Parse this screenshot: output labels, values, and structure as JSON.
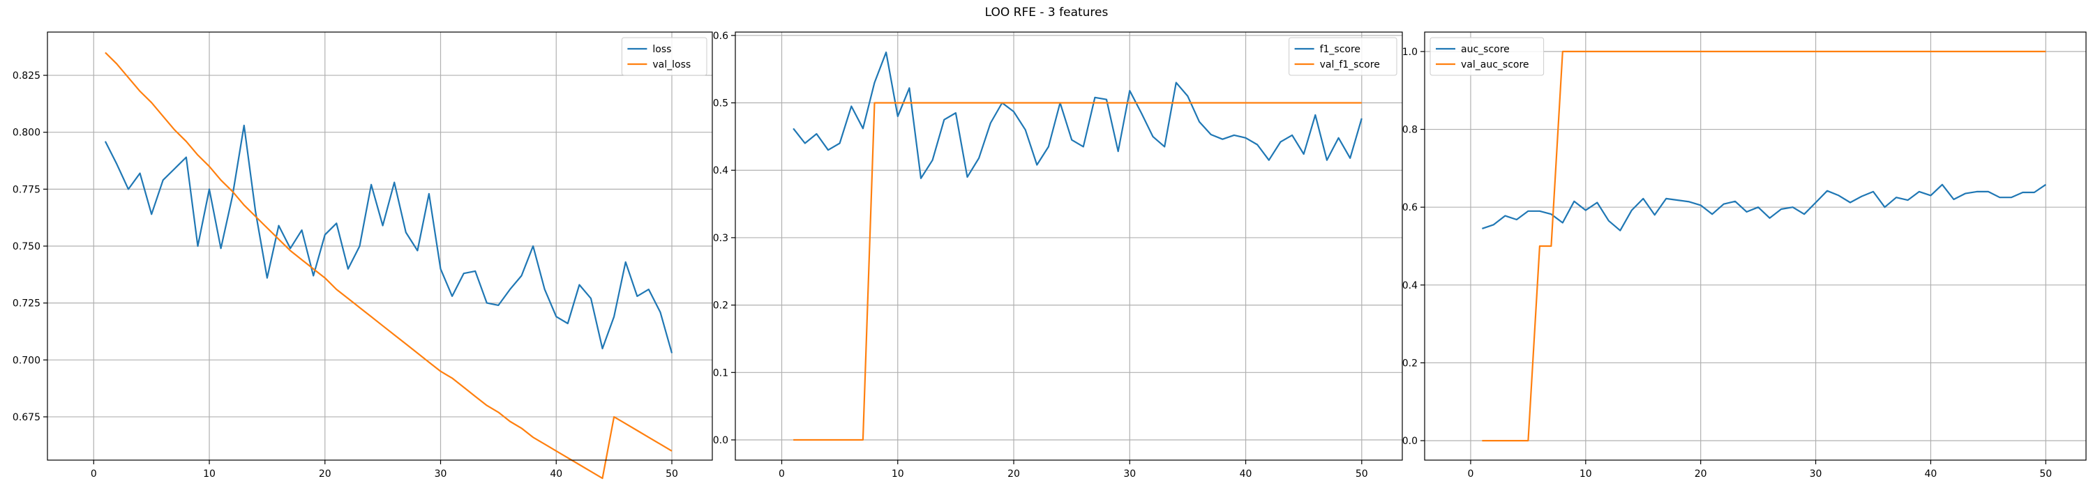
{
  "figure": {
    "title": "LOO RFE - 3 features"
  },
  "chart_data": [
    {
      "type": "line",
      "title": "",
      "xlabel": "",
      "ylabel": "",
      "xlim": [
        -4,
        53.5
      ],
      "ylim": [
        0.656,
        0.844
      ],
      "xticks": [
        0,
        10,
        20,
        30,
        40,
        50
      ],
      "yticks": [
        0.675,
        0.7,
        0.725,
        0.75,
        0.775,
        0.8,
        0.825
      ],
      "ytick_labels": [
        "0.675",
        "0.700",
        "0.725",
        "0.750",
        "0.775",
        "0.800",
        "0.825"
      ],
      "grid": true,
      "legend": "upper right",
      "x": [
        1,
        2,
        3,
        4,
        5,
        6,
        7,
        8,
        9,
        10,
        11,
        12,
        13,
        14,
        15,
        16,
        17,
        18,
        19,
        20,
        21,
        22,
        23,
        24,
        25,
        26,
        27,
        28,
        29,
        30,
        31,
        32,
        33,
        34,
        35,
        36,
        37,
        38,
        39,
        40,
        41,
        42,
        43,
        44,
        45,
        46,
        47,
        48,
        49,
        50
      ],
      "series": [
        {
          "name": "loss",
          "color": "#1f77b4",
          "values": [
            0.796,
            0.786,
            0.775,
            0.782,
            0.764,
            0.779,
            0.784,
            0.789,
            0.75,
            0.775,
            0.749,
            0.772,
            0.803,
            0.765,
            0.736,
            0.759,
            0.749,
            0.757,
            0.737,
            0.755,
            0.76,
            0.74,
            0.75,
            0.777,
            0.759,
            0.778,
            0.756,
            0.748,
            0.773,
            0.74,
            0.728,
            0.738,
            0.739,
            0.725,
            0.724,
            0.731,
            0.737,
            0.75,
            0.731,
            0.719,
            0.716,
            0.733,
            0.727,
            0.705,
            0.719,
            0.743,
            0.728,
            0.731,
            0.721,
            0.703
          ]
        },
        {
          "name": "val_loss",
          "color": "#ff7f0e",
          "values": [
            0.835,
            0.83,
            0.824,
            0.818,
            0.813,
            0.807,
            0.801,
            0.796,
            0.79,
            0.785,
            0.779,
            0.774,
            0.768,
            0.763,
            0.758,
            0.753,
            0.748,
            0.744,
            0.74,
            0.736,
            0.731,
            0.727,
            0.723,
            0.719,
            0.715,
            0.711,
            0.707,
            0.703,
            0.699,
            0.695,
            0.692,
            0.688,
            0.684,
            0.68,
            0.677,
            0.673,
            0.67,
            0.666,
            0.663,
            0.66,
            0.657,
            0.654,
            0.651,
            0.648,
            0.675,
            0.672,
            0.669,
            0.666,
            0.663,
            0.66
          ]
        }
      ]
    },
    {
      "type": "line",
      "title": "",
      "xlabel": "",
      "ylabel": "",
      "xlim": [
        -4,
        53.5
      ],
      "ylim": [
        -0.03,
        0.605
      ],
      "xticks": [
        0,
        10,
        20,
        30,
        40,
        50
      ],
      "yticks": [
        0.0,
        0.1,
        0.2,
        0.3,
        0.4,
        0.5,
        0.6
      ],
      "ytick_labels": [
        "0.0",
        "0.1",
        "0.2",
        "0.3",
        "0.4",
        "0.5",
        "0.6"
      ],
      "grid": true,
      "legend": "upper right",
      "x": [
        1,
        2,
        3,
        4,
        5,
        6,
        7,
        8,
        9,
        10,
        11,
        12,
        13,
        14,
        15,
        16,
        17,
        18,
        19,
        20,
        21,
        22,
        23,
        24,
        25,
        26,
        27,
        28,
        29,
        30,
        31,
        32,
        33,
        34,
        35,
        36,
        37,
        38,
        39,
        40,
        41,
        42,
        43,
        44,
        45,
        46,
        47,
        48,
        49,
        50
      ],
      "series": [
        {
          "name": "f1_score",
          "color": "#1f77b4",
          "values": [
            0.462,
            0.44,
            0.454,
            0.43,
            0.44,
            0.495,
            0.462,
            0.53,
            0.575,
            0.48,
            0.522,
            0.388,
            0.415,
            0.475,
            0.485,
            0.39,
            0.418,
            0.47,
            0.5,
            0.487,
            0.46,
            0.408,
            0.435,
            0.5,
            0.445,
            0.435,
            0.508,
            0.505,
            0.428,
            0.518,
            0.485,
            0.45,
            0.435,
            0.53,
            0.51,
            0.472,
            0.453,
            0.446,
            0.452,
            0.448,
            0.438,
            0.415,
            0.442,
            0.452,
            0.424,
            0.482,
            0.415,
            0.448,
            0.418,
            0.477
          ]
        },
        {
          "name": "val_f1_score",
          "color": "#ff7f0e",
          "values": [
            0,
            0,
            0,
            0,
            0,
            0,
            0,
            0.5,
            0.5,
            0.5,
            0.5,
            0.5,
            0.5,
            0.5,
            0.5,
            0.5,
            0.5,
            0.5,
            0.5,
            0.5,
            0.5,
            0.5,
            0.5,
            0.5,
            0.5,
            0.5,
            0.5,
            0.5,
            0.5,
            0.5,
            0.5,
            0.5,
            0.5,
            0.5,
            0.5,
            0.5,
            0.5,
            0.5,
            0.5,
            0.5,
            0.5,
            0.5,
            0.5,
            0.5,
            0.5,
            0.5,
            0.5,
            0.5,
            0.5,
            0.5
          ]
        }
      ]
    },
    {
      "type": "line",
      "title": "",
      "xlabel": "",
      "ylabel": "",
      "xlim": [
        -4,
        53.5
      ],
      "ylim": [
        -0.05,
        1.05
      ],
      "xticks": [
        0,
        10,
        20,
        30,
        40,
        50
      ],
      "yticks": [
        0.0,
        0.2,
        0.4,
        0.6,
        0.8,
        1.0
      ],
      "ytick_labels": [
        "0.0",
        "0.2",
        "0.4",
        "0.6",
        "0.8",
        "1.0"
      ],
      "grid": true,
      "legend": "upper left",
      "x": [
        1,
        2,
        3,
        4,
        5,
        6,
        7,
        8,
        9,
        10,
        11,
        12,
        13,
        14,
        15,
        16,
        17,
        18,
        19,
        20,
        21,
        22,
        23,
        24,
        25,
        26,
        27,
        28,
        29,
        30,
        31,
        32,
        33,
        34,
        35,
        36,
        37,
        38,
        39,
        40,
        41,
        42,
        43,
        44,
        45,
        46,
        47,
        48,
        49,
        50
      ],
      "series": [
        {
          "name": "auc_score",
          "color": "#1f77b4",
          "values": [
            0.545,
            0.555,
            0.578,
            0.568,
            0.59,
            0.59,
            0.582,
            0.56,
            0.615,
            0.592,
            0.612,
            0.565,
            0.54,
            0.592,
            0.622,
            0.58,
            0.622,
            0.618,
            0.614,
            0.605,
            0.582,
            0.608,
            0.615,
            0.588,
            0.6,
            0.572,
            0.595,
            0.6,
            0.582,
            0.612,
            0.642,
            0.63,
            0.612,
            0.628,
            0.64,
            0.6,
            0.625,
            0.618,
            0.64,
            0.63,
            0.658,
            0.62,
            0.635,
            0.64,
            0.64,
            0.625,
            0.625,
            0.638,
            0.638,
            0.658
          ]
        },
        {
          "name": "val_auc_score",
          "color": "#ff7f0e",
          "values": [
            0,
            0,
            0,
            0,
            0,
            0.5,
            0.5,
            1,
            1,
            1,
            1,
            1,
            1,
            1,
            1,
            1,
            1,
            1,
            1,
            1,
            1,
            1,
            1,
            1,
            1,
            1,
            1,
            1,
            1,
            1,
            1,
            1,
            1,
            1,
            1,
            1,
            1,
            1,
            1,
            1,
            1,
            1,
            1,
            1,
            1,
            1,
            1,
            1,
            1,
            1
          ]
        }
      ]
    }
  ]
}
